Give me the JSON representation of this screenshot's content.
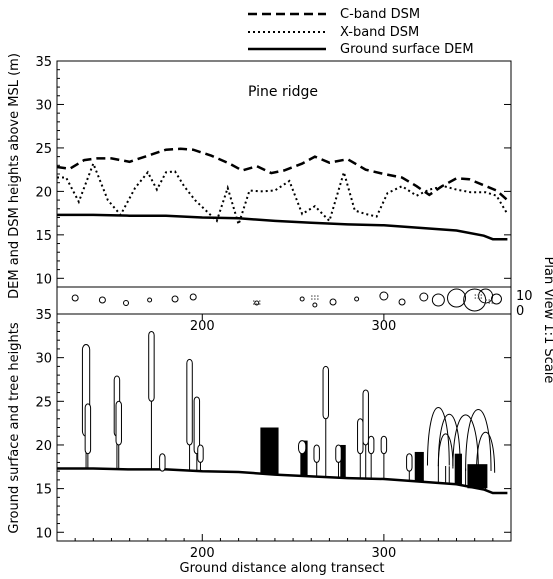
{
  "chart_data": [
    {
      "type": "line",
      "annotation": "Pine ridge",
      "ylabel": "DEM and DSM heights above MSL (m)",
      "xlim": [
        120,
        370
      ],
      "ylim": [
        9,
        35
      ],
      "yticks": [
        10,
        15,
        20,
        25,
        30,
        35
      ],
      "grid": false,
      "legend_position": "top-center",
      "series": [
        {
          "name": "C-band DSM",
          "style": "dashed",
          "x": [
            120,
            127,
            135,
            142,
            150,
            160,
            170,
            180,
            188,
            195,
            205,
            215,
            222,
            230,
            238,
            245,
            255,
            262,
            270,
            280,
            290,
            300,
            310,
            318,
            325,
            332,
            340,
            347,
            355,
            362,
            368
          ],
          "y": [
            22.8,
            22.6,
            23.6,
            23.8,
            23.8,
            23.4,
            24.1,
            24.8,
            24.9,
            24.8,
            24.1,
            23.2,
            22.4,
            22.9,
            22.1,
            22.4,
            23.2,
            24.0,
            23.3,
            23.7,
            22.5,
            22.0,
            21.6,
            20.6,
            19.6,
            20.6,
            21.5,
            21.4,
            20.7,
            20.1,
            19.0
          ]
        },
        {
          "name": "X-band DSM",
          "style": "dotted",
          "x": [
            120,
            125,
            132,
            140,
            148,
            155,
            163,
            170,
            175,
            180,
            185,
            190,
            196,
            202,
            208,
            214,
            220,
            226,
            232,
            240,
            248,
            255,
            262,
            270,
            278,
            284,
            290,
            296,
            302,
            310,
            318,
            325,
            333,
            340,
            348,
            356,
            362,
            368
          ],
          "y": [
            21.6,
            21.6,
            18.8,
            23.2,
            19.0,
            17.3,
            20.4,
            22.2,
            20.2,
            22.2,
            22.3,
            20.6,
            19.0,
            17.8,
            16.6,
            20.4,
            16.2,
            20.1,
            20.0,
            20.1,
            21.2,
            17.4,
            18.3,
            16.6,
            22.2,
            17.8,
            17.4,
            17.1,
            19.8,
            20.6,
            19.5,
            20.2,
            20.6,
            20.2,
            19.9,
            19.9,
            19.5,
            17.4
          ]
        },
        {
          "name": "Ground surface DEM",
          "style": "solid",
          "x": [
            120,
            140,
            160,
            180,
            200,
            220,
            240,
            260,
            280,
            300,
            320,
            340,
            355,
            360,
            368
          ],
          "y": [
            17.3,
            17.3,
            17.2,
            17.2,
            17.0,
            16.9,
            16.6,
            16.4,
            16.2,
            16.1,
            15.8,
            15.5,
            14.9,
            14.5,
            14.5
          ]
        }
      ]
    },
    {
      "type": "plan_view_strip",
      "right_label": "Plan View 1:1 Scale",
      "ticks": [
        "10",
        "0"
      ]
    },
    {
      "type": "profile",
      "xlabel": "Ground distance along transect",
      "ylabel": "Ground surface and tree heights",
      "xlim": [
        120,
        370
      ],
      "ylim": [
        9,
        35
      ],
      "xticks": [
        200,
        300
      ],
      "yticks": [
        10,
        15,
        20,
        25,
        30,
        35
      ],
      "ground": {
        "x": [
          120,
          140,
          160,
          180,
          200,
          220,
          240,
          260,
          280,
          300,
          320,
          340,
          355,
          360,
          368
        ],
        "y": [
          17.3,
          17.3,
          17.2,
          17.2,
          17.0,
          16.9,
          16.6,
          16.4,
          16.2,
          16.1,
          15.8,
          15.5,
          14.9,
          14.5,
          14.5
        ]
      },
      "trees": [
        {
          "x": 136,
          "height": 31.5,
          "crown_width": 4,
          "crown_bottom": 21.0
        },
        {
          "x": 137,
          "height": 24.7,
          "crown_width": 3,
          "crown_bottom": 19.0
        },
        {
          "x": 153,
          "height": 27.9,
          "crown_width": 3,
          "crown_bottom": 21.0
        },
        {
          "x": 154,
          "height": 25.0,
          "crown_width": 3,
          "crown_bottom": 20.0
        },
        {
          "x": 172,
          "height": 33.0,
          "crown_width": 3,
          "crown_bottom": 25.0
        },
        {
          "x": 178,
          "height": 19.0,
          "crown_width": 3,
          "crown_bottom": 17.0
        },
        {
          "x": 193,
          "height": 29.8,
          "crown_width": 3,
          "crown_bottom": 20.0
        },
        {
          "x": 197,
          "height": 25.5,
          "crown_width": 3,
          "crown_bottom": 19.0
        },
        {
          "x": 199,
          "height": 20.0,
          "crown_width": 3,
          "crown_bottom": 18.0
        },
        {
          "x": 268,
          "height": 29.0,
          "crown_width": 3,
          "crown_bottom": 23.0
        },
        {
          "x": 255,
          "height": 20.5,
          "crown_width": 4,
          "crown_bottom": 19.0
        },
        {
          "x": 263,
          "height": 20.0,
          "crown_width": 3,
          "crown_bottom": 18.0
        },
        {
          "x": 275,
          "height": 20.0,
          "crown_width": 3,
          "crown_bottom": 18.0
        },
        {
          "x": 287,
          "height": 23.0,
          "crown_width": 3,
          "crown_bottom": 19.0
        },
        {
          "x": 290,
          "height": 26.3,
          "crown_width": 3,
          "crown_bottom": 20.0
        },
        {
          "x": 293,
          "height": 21.0,
          "crown_width": 3,
          "crown_bottom": 19.0
        },
        {
          "x": 300,
          "height": 21.0,
          "crown_width": 3,
          "crown_bottom": 19.0
        },
        {
          "x": 314,
          "height": 19.0,
          "crown_width": 3,
          "crown_bottom": 17.0
        }
      ],
      "blocks": [
        {
          "x0": 232,
          "x1": 242,
          "top": 22.0
        },
        {
          "x0": 254,
          "x1": 258,
          "top": 20.5
        },
        {
          "x0": 276,
          "x1": 279,
          "top": 20.0
        },
        {
          "x0": 317,
          "x1": 322,
          "top": 19.2
        },
        {
          "x0": 339,
          "x1": 343,
          "top": 19.0
        },
        {
          "x0": 346,
          "x1": 357,
          "top": 17.8
        }
      ],
      "arcs": [
        {
          "x": 330,
          "width": 12,
          "height": 26.5
        },
        {
          "x": 336,
          "width": 12,
          "height": 25.5
        },
        {
          "x": 345,
          "width": 14,
          "height": 25.5
        },
        {
          "x": 352,
          "width": 14,
          "height": 26.4
        },
        {
          "x": 334,
          "width": 8,
          "height": 22.5
        },
        {
          "x": 356,
          "width": 10,
          "height": 23.0
        }
      ]
    }
  ]
}
